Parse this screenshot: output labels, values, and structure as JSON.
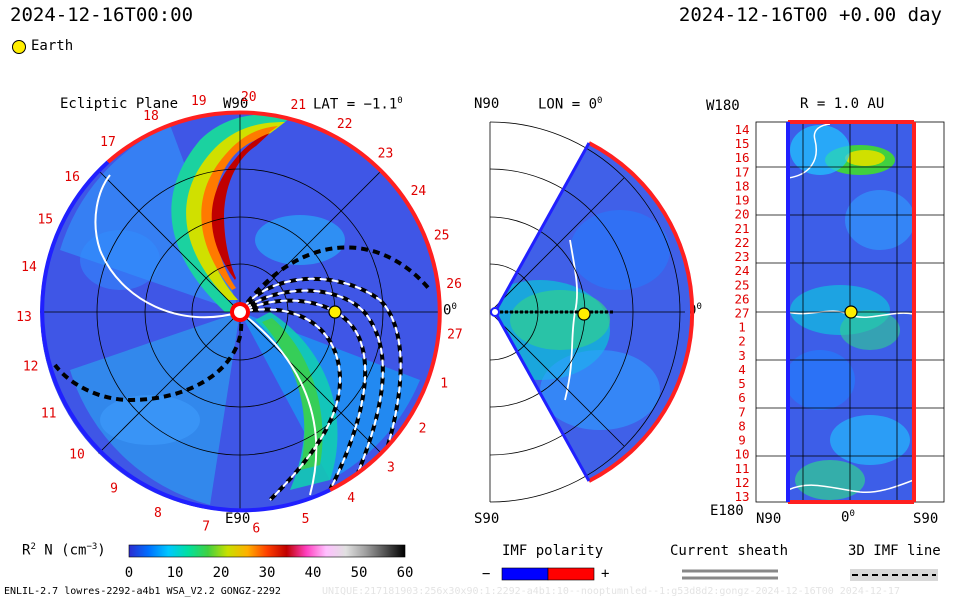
{
  "header": {
    "left_time": "2024-12-16T00:00",
    "right_time": "2024-12-16T00 +0.00 day",
    "legend_earth": "Earth"
  },
  "panel_ecliptic": {
    "title": "Ecliptic Plane",
    "top_label": "W90",
    "lat_label": "LAT = −1.1",
    "lat_degree": "0",
    "right_label": "0",
    "right_degree": "0",
    "bottom_label": "E90",
    "carrington_labels": [
      "19",
      "20",
      "21",
      "22",
      "23",
      "24",
      "25",
      "26",
      "27",
      "1",
      "2",
      "3",
      "4",
      "5",
      "6",
      "7",
      "8",
      "9",
      "10",
      "11",
      "12",
      "13",
      "14",
      "15",
      "16",
      "17",
      "18"
    ]
  },
  "panel_meridional": {
    "top_left": "N90",
    "lon_label": "LON = 0",
    "lon_degree": "0",
    "right_label": "0",
    "right_degree": "0",
    "bottom_label": "S90"
  },
  "panel_sphere": {
    "top_left": "W180",
    "r_label": "R = 1.0 AU",
    "bottom_left": "E180",
    "x_labels": [
      "N90",
      "0",
      "S90"
    ],
    "x_degree": "0",
    "y_labels": [
      "14",
      "15",
      "16",
      "17",
      "18",
      "19",
      "20",
      "21",
      "22",
      "23",
      "24",
      "25",
      "26",
      "27",
      "1",
      "2",
      "3",
      "4",
      "5",
      "6",
      "7",
      "8",
      "9",
      "10",
      "11",
      "12",
      "13"
    ]
  },
  "colorbar": {
    "label": "R",
    "label_sup": "2",
    "label_rest": " N (cm",
    "label_exp": "−3",
    "label_close": ")",
    "ticks": [
      "0",
      "10",
      "20",
      "30",
      "40",
      "50",
      "60"
    ],
    "range": [
      0,
      60
    ],
    "colors": [
      "#2b2bd0",
      "#0070ff",
      "#00c8ff",
      "#00e0a0",
      "#40d040",
      "#c8e000",
      "#ffb000",
      "#ff4000",
      "#c00000",
      "#ff40c0",
      "#ffc0ff",
      "#e0e0e0",
      "#a0a0a0",
      "#505050",
      "#000000"
    ]
  },
  "legend": {
    "imf_title": "IMF polarity",
    "imf_minus": "−",
    "imf_plus": "+",
    "imf_neg_color": "#0000ff",
    "imf_pos_color": "#ff0000",
    "sheath_title": "Current sheath",
    "imf_line_title": "3D IMF line"
  },
  "footer": {
    "model_info": "ENLIL-2.7 lowres-2292-a4b1 WSA_V2.2 GONGZ-2292",
    "faded_text": "UNIQUE:217181903:256x30x90:1:2292-a4b1:10--nooptumnled--1:g53d8d2:gongz-2024-12-16T00   2024-12-17"
  }
}
